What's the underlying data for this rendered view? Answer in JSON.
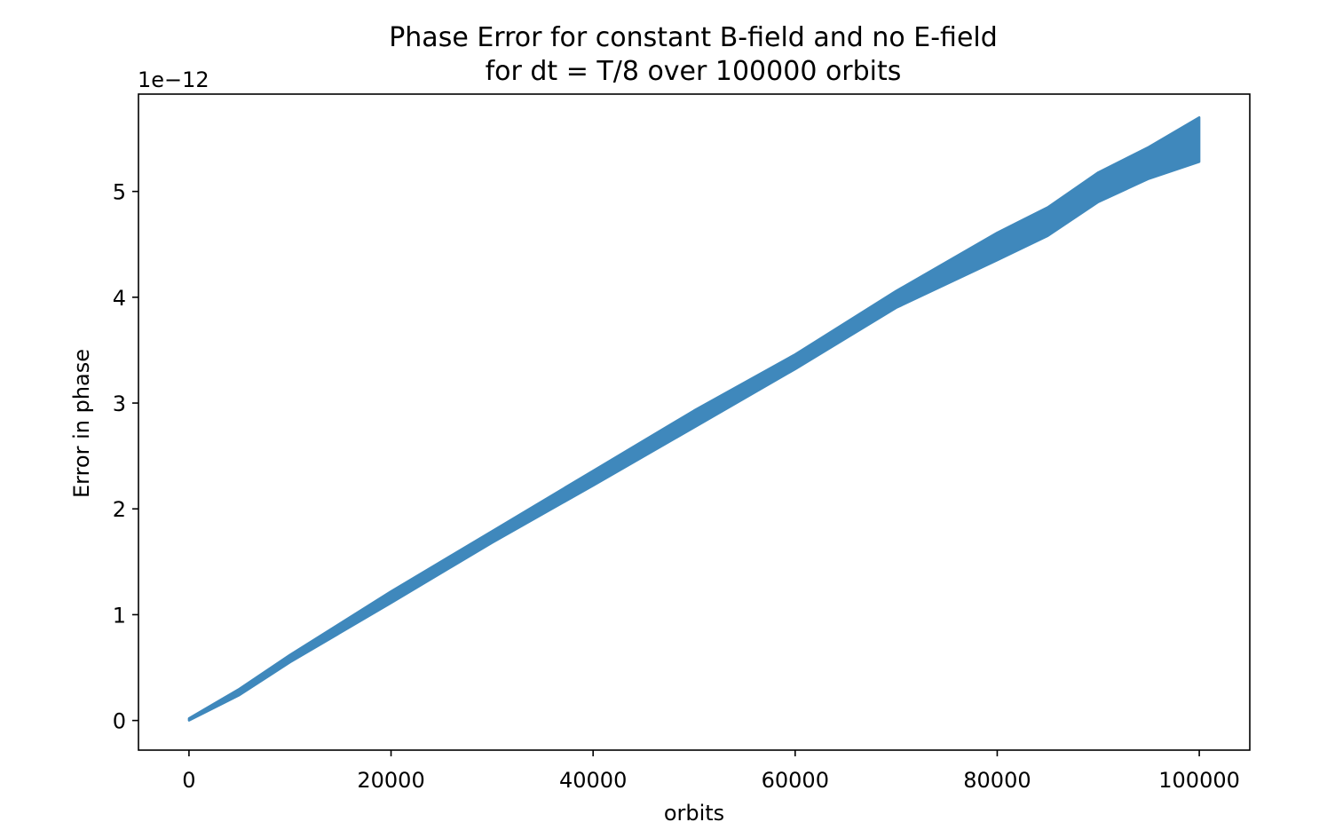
{
  "chart_data": {
    "type": "line",
    "title": "Phase Error for constant B-field and no E-field",
    "subtitle": "for dt = T/8 over 100000 orbits",
    "xlabel": "orbits",
    "ylabel": "Error in phase",
    "y_offset_label": "1e−12",
    "y_scale": 1e-12,
    "xlim": [
      -5000,
      105000
    ],
    "ylim": [
      -0.28,
      5.92
    ],
    "x_ticks": [
      0,
      20000,
      40000,
      60000,
      80000,
      100000
    ],
    "x_tick_labels": [
      "0",
      "20000",
      "40000",
      "60000",
      "80000",
      "100000"
    ],
    "y_ticks": [
      0,
      1,
      2,
      3,
      4,
      5
    ],
    "y_tick_labels": [
      "0",
      "1",
      "2",
      "3",
      "4",
      "5"
    ],
    "grid": false,
    "series": [
      {
        "color": "#3f88bc",
        "x": [
          0,
          5000,
          10000,
          20000,
          30000,
          40000,
          50000,
          60000,
          70000,
          80000,
          85000,
          90000,
          95000,
          100000
        ],
        "lower": [
          0.0,
          0.24,
          0.55,
          1.11,
          1.68,
          2.22,
          2.77,
          3.32,
          3.9,
          4.35,
          4.58,
          4.9,
          5.12,
          5.28
        ],
        "upper": [
          0.02,
          0.3,
          0.62,
          1.22,
          1.79,
          2.36,
          2.93,
          3.46,
          4.06,
          4.61,
          4.85,
          5.18,
          5.42,
          5.7
        ]
      }
    ]
  }
}
